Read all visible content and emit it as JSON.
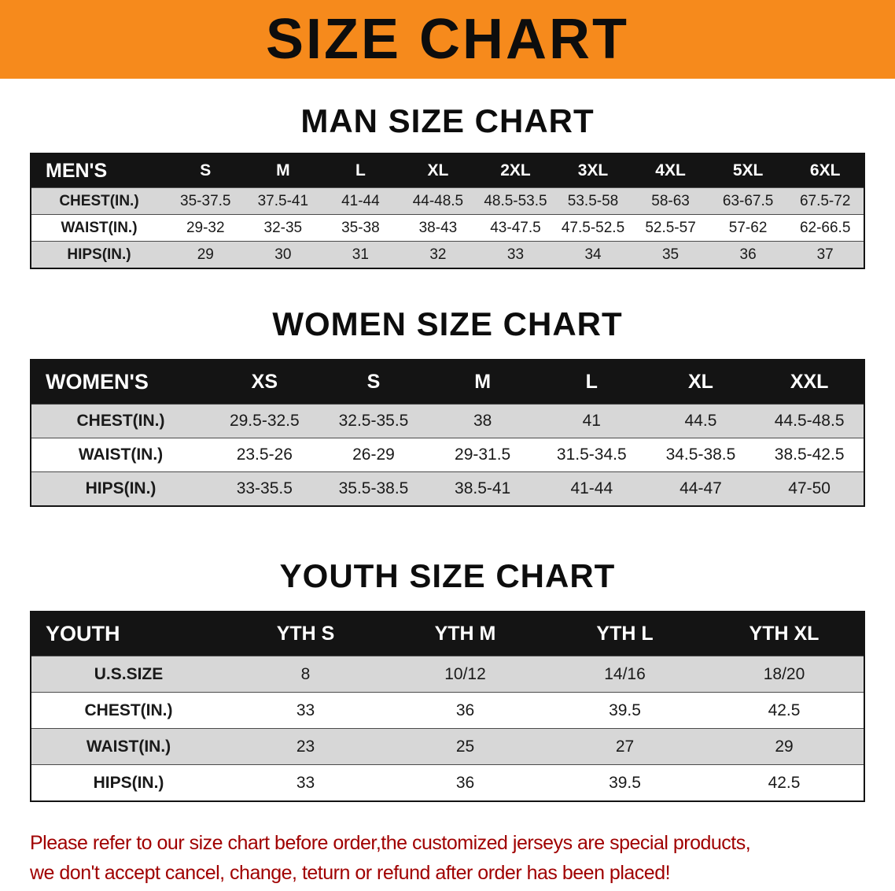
{
  "colors": {
    "banner_bg": "#f68a1c",
    "banner_text": "#0d0d0d",
    "table_header_bg": "#141414",
    "table_header_text": "#ffffff",
    "row_alt_bg": "#d7d7d7",
    "footer_text": "#a00000"
  },
  "banner": {
    "title": "SIZE CHART"
  },
  "sections": [
    {
      "heading": "MAN SIZE CHART",
      "table": {
        "header": [
          "MEN'S",
          "S",
          "M",
          "L",
          "XL",
          "2XL",
          "3XL",
          "4XL",
          "5XL",
          "6XL"
        ],
        "rows": [
          {
            "label": "CHEST(IN.)",
            "values": [
              "35-37.5",
              "37.5-41",
              "41-44",
              "44-48.5",
              "48.5-53.5",
              "53.5-58",
              "58-63",
              "63-67.5",
              "67.5-72"
            ]
          },
          {
            "label": "WAIST(IN.)",
            "values": [
              "29-32",
              "32-35",
              "35-38",
              "38-43",
              "43-47.5",
              "47.5-52.5",
              "52.5-57",
              "57-62",
              "62-66.5"
            ]
          },
          {
            "label": "HIPS(IN.)",
            "values": [
              "29",
              "30",
              "31",
              "32",
              "33",
              "34",
              "35",
              "36",
              "37"
            ]
          }
        ]
      }
    },
    {
      "heading": "WOMEN SIZE CHART",
      "table": {
        "header": [
          "WOMEN'S",
          "XS",
          "S",
          "M",
          "L",
          "XL",
          "XXL"
        ],
        "rows": [
          {
            "label": "CHEST(IN.)",
            "values": [
              "29.5-32.5",
              "32.5-35.5",
              "38",
              "41",
              "44.5",
              "44.5-48.5"
            ]
          },
          {
            "label": "WAIST(IN.)",
            "values": [
              "23.5-26",
              "26-29",
              "29-31.5",
              "31.5-34.5",
              "34.5-38.5",
              "38.5-42.5"
            ]
          },
          {
            "label": "HIPS(IN.)",
            "values": [
              "33-35.5",
              "35.5-38.5",
              "38.5-41",
              "41-44",
              "44-47",
              "47-50"
            ]
          }
        ]
      }
    },
    {
      "heading": "YOUTH SIZE CHART",
      "table": {
        "header": [
          "YOUTH",
          "YTH S",
          "YTH M",
          "YTH L",
          "YTH XL"
        ],
        "rows": [
          {
            "label": "U.S.SIZE",
            "values": [
              "8",
              "10/12",
              "14/16",
              "18/20"
            ]
          },
          {
            "label": "CHEST(IN.)",
            "values": [
              "33",
              "36",
              "39.5",
              "42.5"
            ]
          },
          {
            "label": "WAIST(IN.)",
            "values": [
              "23",
              "25",
              "27",
              "29"
            ]
          },
          {
            "label": "HIPS(IN.)",
            "values": [
              "33",
              "36",
              "39.5",
              "42.5"
            ]
          }
        ]
      }
    }
  ],
  "footer": {
    "line1": "Please refer to our size chart before order,the customized jerseys are special products,",
    "line2": "we don't accept cancel, change, teturn or refund after order has been placed!"
  }
}
